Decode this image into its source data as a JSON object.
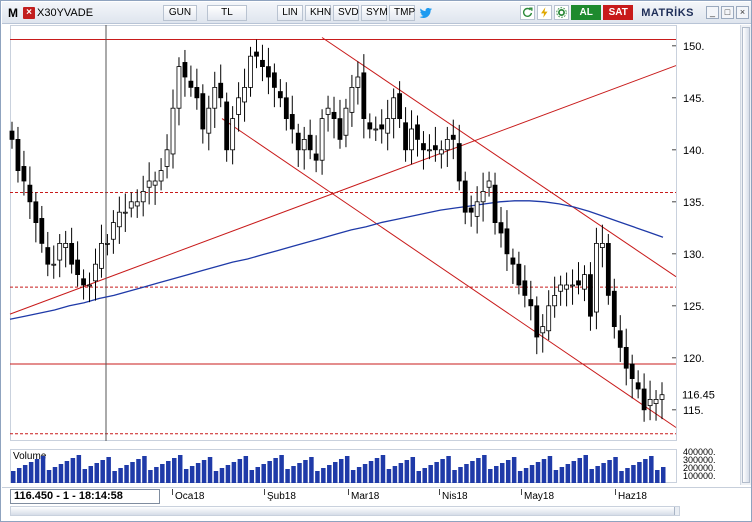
{
  "toolbar": {
    "app_logo": "M",
    "symbol": "X30YVADE",
    "buttons": [
      "GUN",
      "TL",
      "LIN",
      "KHN",
      "SVD",
      "SYM",
      "TMP"
    ],
    "buy_label": "AL",
    "sell_label": "SAT",
    "brand": "MATRİKS"
  },
  "volume": {
    "label": "Volume"
  },
  "status": {
    "cursor_readout": "116.450 - 1 - 18:14:58"
  },
  "colors": {
    "trendline": "#c81b1b",
    "moving_average": "#1f3aa8",
    "volume_bar": "#1f3aa8",
    "candle": "#000000"
  },
  "chart_data": {
    "type": "candlestick",
    "symbol": "X30YVADE",
    "y_ticks": [
      "150.",
      "145.",
      "140.",
      "135.",
      "130.",
      "125.",
      "120.",
      "115."
    ],
    "ylim": [
      112,
      152
    ],
    "last_price_label": "116.45",
    "x_labels": [
      "Oca18",
      "Şub18",
      "Mar18",
      "Nis18",
      "May18",
      "Haz18"
    ],
    "volume_ticks": [
      "400000.",
      "300000.",
      "200000.",
      "100000."
    ],
    "horizontal_lines": [
      {
        "value": 150.6,
        "style": "solid"
      },
      {
        "value": 135.9,
        "style": "dashed"
      },
      {
        "value": 126.8,
        "style": "dashed"
      },
      {
        "value": 119.4,
        "style": "solid"
      },
      {
        "value": 112.7,
        "style": "dashed"
      }
    ],
    "close": [
      141,
      138,
      137,
      135,
      133,
      131,
      129,
      129,
      131,
      131,
      129,
      128,
      127,
      127,
      129,
      131,
      131,
      133,
      134,
      134,
      135,
      135,
      136,
      137,
      137,
      138,
      140,
      144,
      148,
      147,
      146,
      145,
      142,
      144,
      146,
      145,
      140,
      143,
      145,
      146,
      149,
      149,
      148,
      147,
      146,
      145,
      143,
      142,
      140,
      141,
      140,
      139,
      143,
      144,
      143,
      141,
      144,
      146,
      147,
      143,
      142,
      142,
      142,
      143,
      145,
      143,
      140,
      142,
      141,
      140,
      140,
      140,
      140,
      141,
      141,
      137,
      134,
      134,
      135,
      136,
      137,
      133,
      132,
      130,
      129,
      127,
      126,
      125,
      122,
      123,
      125,
      126,
      127,
      127,
      127,
      127,
      128,
      124,
      131,
      131,
      126,
      123,
      121,
      119,
      118,
      117,
      115,
      116,
      116,
      116.45
    ],
    "ma": [
      123.7,
      124,
      124.3,
      124.6,
      125,
      125.3,
      125.7,
      126,
      126.4,
      126.8,
      127.2,
      127.6,
      128,
      128.4,
      128.8,
      129.2,
      129.5,
      129.9,
      130.3,
      130.7,
      131.1,
      131.5,
      131.9,
      132.3,
      132.6,
      133,
      133.3,
      133.6,
      133.9,
      134.2,
      134.4,
      134.6,
      134.8,
      135,
      135.1,
      135.1,
      135,
      134.8,
      134.5,
      134.1,
      133.6,
      133.1,
      132.6,
      132.1,
      131.6
    ],
    "volume_scale_max": 400000
  }
}
